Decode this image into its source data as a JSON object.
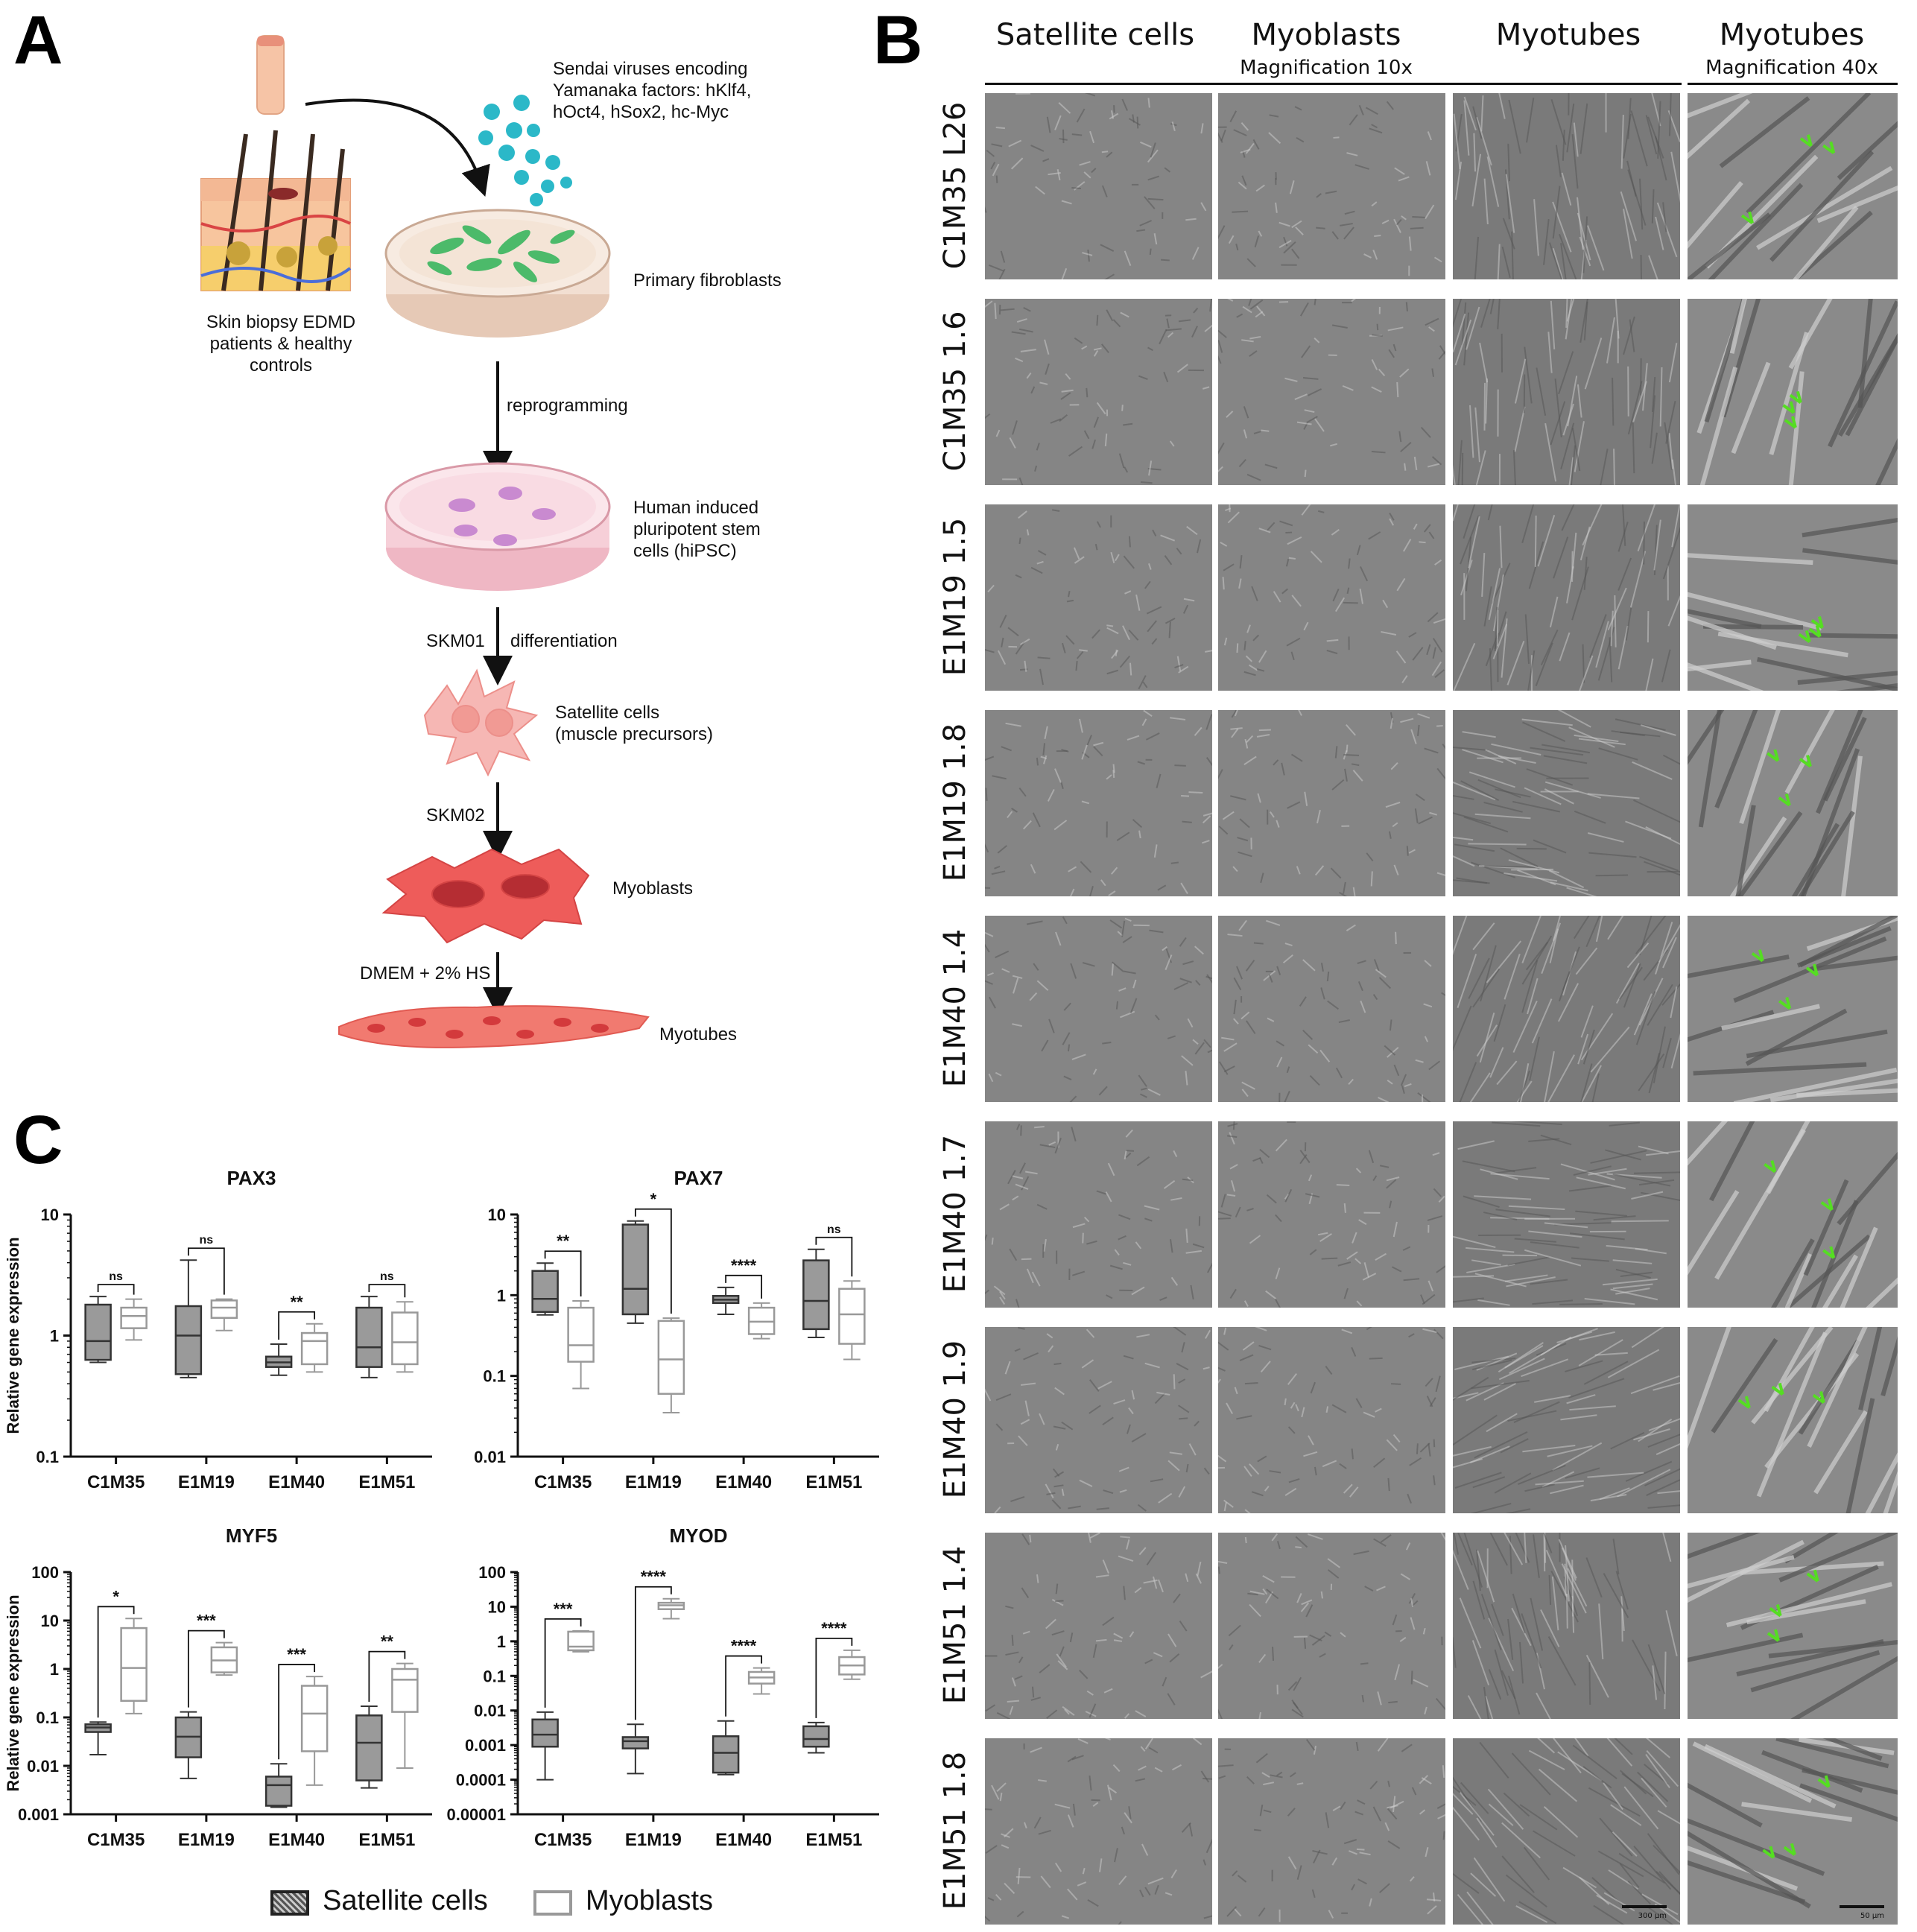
{
  "panels": {
    "a": "A",
    "b": "B",
    "c": "C"
  },
  "panel_a": {
    "virus_text": [
      "Sendai viruses encoding",
      "Yamanaka factors: hKlf4,",
      "hOct4, hSox2, hc-Myc"
    ],
    "biopsy_text": [
      "Skin biopsy EDMD",
      "patients & healthy",
      "controls"
    ],
    "fibroblasts": "Primary fibroblasts",
    "reprogramming": "reprogramming",
    "hipsc_text": [
      "Human induced",
      "pluripotent stem",
      "cells (hiPSC)"
    ],
    "skm01": "SKM01",
    "differentiation": "differentiation",
    "satellite_text": [
      "Satellite cells",
      "(muscle precursors)"
    ],
    "skm02": "SKM02",
    "myoblasts": "Myoblasts",
    "dmem": "DMEM + 2% HS",
    "myotubes": "Myotubes"
  },
  "panel_b": {
    "columns": [
      "Satellite cells",
      "Myoblasts",
      "Myotubes",
      "Myotubes"
    ],
    "magnification_10x": "Magnification 10x",
    "magnification_40x": "Magnification 40x",
    "rows": [
      "C1M35 L26",
      "C1M35 1.6",
      "E1M19 1.5",
      "E1M19 1.8",
      "E1M40 1.4",
      "E1M40 1.7",
      "E1M40 1.9",
      "E1M51 1.4",
      "E1M51 1.8"
    ],
    "scale_bar_1": "300 µm",
    "scale_bar_2": "50 µm",
    "arrow_color": "#55dd22"
  },
  "panel_c": {
    "legend": {
      "satellite": "Satellite cells",
      "myoblasts": "Myoblasts"
    },
    "colors": {
      "satellite": "#333333",
      "myoblasts": "#999999"
    },
    "ylabel": "Relative gene expression",
    "charts": [
      {
        "title": "PAX3",
        "type": "box",
        "log": true,
        "yticks": [
          "10",
          "1",
          "0.1"
        ],
        "ymin_exp": -1,
        "ymax_exp": 1,
        "categories": [
          "C1M35",
          "E1M19",
          "E1M40",
          "E1M51"
        ],
        "sat": [
          [
            0.6,
            0.63,
            0.9,
            1.8,
            2.1
          ],
          [
            0.45,
            0.48,
            1.0,
            1.75,
            4.2
          ],
          [
            0.47,
            0.55,
            0.6,
            0.67,
            0.85
          ],
          [
            0.45,
            0.55,
            0.8,
            1.7,
            2.1
          ]
        ],
        "myo": [
          [
            0.92,
            1.15,
            1.45,
            1.7,
            2.0
          ],
          [
            1.1,
            1.4,
            1.7,
            1.95,
            2.0
          ],
          [
            0.5,
            0.58,
            0.9,
            1.05,
            1.25
          ],
          [
            0.5,
            0.58,
            0.88,
            1.55,
            1.9
          ]
        ],
        "sig": [
          "ns",
          "ns",
          "**",
          "ns"
        ]
      },
      {
        "title": "PAX7",
        "type": "box",
        "log": true,
        "yticks": [
          "10",
          "1",
          "0.1",
          "0.01"
        ],
        "ymin_exp": -2,
        "ymax_exp": 1,
        "categories": [
          "C1M35",
          "E1M19",
          "E1M40",
          "E1M51"
        ],
        "sat": [
          [
            0.57,
            0.62,
            0.9,
            2.0,
            2.5
          ],
          [
            0.45,
            0.58,
            1.2,
            7.5,
            8.3
          ],
          [
            0.58,
            0.8,
            0.88,
            0.98,
            1.25
          ],
          [
            0.3,
            0.38,
            0.85,
            2.7,
            3.7
          ]
        ],
        "myo": [
          [
            0.07,
            0.15,
            0.24,
            0.7,
            0.85
          ],
          [
            0.035,
            0.06,
            0.16,
            0.48,
            0.52
          ],
          [
            0.29,
            0.33,
            0.47,
            0.7,
            0.8
          ],
          [
            0.16,
            0.25,
            0.58,
            1.2,
            1.5
          ]
        ],
        "sig": [
          "**",
          "*",
          "****",
          "ns"
        ]
      },
      {
        "title": "MYF5",
        "type": "box",
        "log": true,
        "yticks": [
          "100",
          "10",
          "1",
          "0.1",
          "0.01",
          "0.001"
        ],
        "ymin_exp": -3,
        "ymax_exp": 2,
        "categories": [
          "C1M35",
          "E1M19",
          "E1M40",
          "E1M51"
        ],
        "sat": [
          [
            0.017,
            0.05,
            0.062,
            0.072,
            0.08
          ],
          [
            0.0055,
            0.015,
            0.04,
            0.1,
            0.13
          ],
          [
            0.0014,
            0.0015,
            0.004,
            0.006,
            0.011
          ],
          [
            0.0035,
            0.005,
            0.03,
            0.11,
            0.17
          ]
        ],
        "myo": [
          [
            0.12,
            0.22,
            1.05,
            7.0,
            11
          ],
          [
            0.75,
            0.85,
            1.5,
            2.8,
            3.5
          ],
          [
            0.004,
            0.02,
            0.12,
            0.45,
            0.7
          ],
          [
            0.009,
            0.13,
            0.6,
            1.0,
            1.3
          ]
        ],
        "sig": [
          "*",
          "***",
          "***",
          "**"
        ]
      },
      {
        "title": "MYOD",
        "type": "box",
        "log": true,
        "yticks": [
          "100",
          "10",
          "1",
          "0.1",
          "0.01",
          "0.001",
          "0.0001",
          "0.00001"
        ],
        "ymin_exp": -5,
        "ymax_exp": 2,
        "categories": [
          "C1M35",
          "E1M19",
          "E1M40",
          "E1M51"
        ],
        "sat": [
          [
            0.0001,
            0.0009,
            0.002,
            0.0055,
            0.009
          ],
          [
            0.00015,
            0.0008,
            0.0013,
            0.0017,
            0.004
          ],
          [
            0.00014,
            0.00016,
            0.0006,
            0.0018,
            0.005
          ],
          [
            0.0006,
            0.0009,
            0.0015,
            0.0035,
            0.0045
          ]
        ],
        "myo": [
          [
            0.5,
            0.55,
            0.7,
            1.9,
            2.0
          ],
          [
            4.5,
            8.5,
            11,
            13,
            17
          ],
          [
            0.03,
            0.06,
            0.09,
            0.13,
            0.17
          ],
          [
            0.08,
            0.11,
            0.2,
            0.35,
            0.55
          ]
        ],
        "sig": [
          "***",
          "****",
          "****",
          "****"
        ]
      }
    ]
  }
}
